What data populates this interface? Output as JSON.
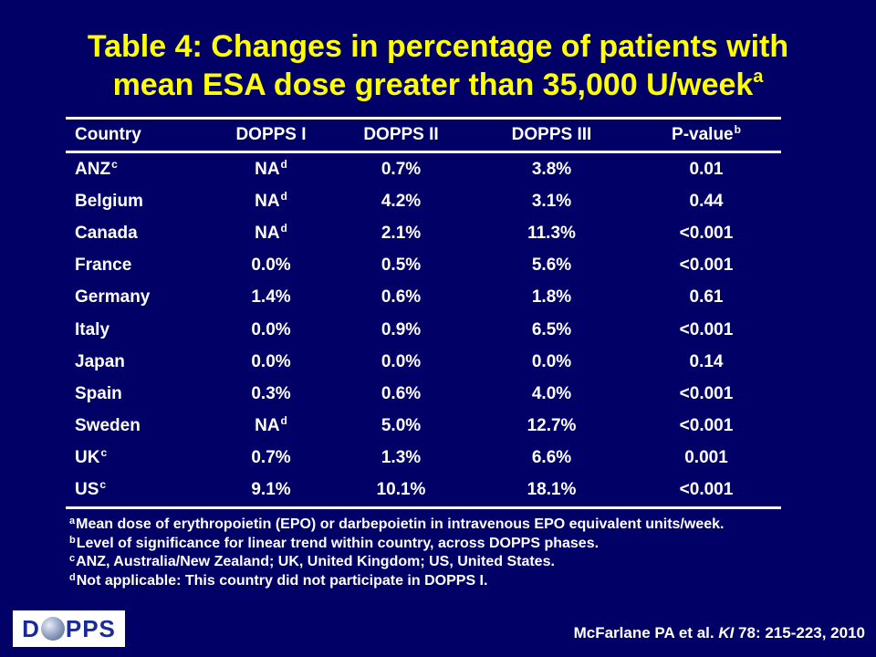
{
  "title": {
    "line1": "Table 4: Changes in percentage of patients with",
    "line2": "mean ESA dose greater than 35,000 U/week",
    "line2_note": "a"
  },
  "table": {
    "headers": [
      "Country",
      "DOPPS I",
      "DOPPS II",
      "DOPPS III",
      "P-value"
    ],
    "pvalue_note": "b",
    "rows": [
      {
        "country": "ANZ",
        "country_note": "c",
        "d1": "NA",
        "d1_note": "d",
        "d2": "0.7%",
        "d3": "3.8%",
        "p": "0.01"
      },
      {
        "country": "Belgium",
        "country_note": "",
        "d1": "NA",
        "d1_note": "d",
        "d2": "4.2%",
        "d3": "3.1%",
        "p": "0.44"
      },
      {
        "country": "Canada",
        "country_note": "",
        "d1": "NA",
        "d1_note": "d",
        "d2": "2.1%",
        "d3": "11.3%",
        "p": "<0.001"
      },
      {
        "country": "France",
        "country_note": "",
        "d1": "0.0%",
        "d1_note": "",
        "d2": "0.5%",
        "d3": "5.6%",
        "p": "<0.001"
      },
      {
        "country": "Germany",
        "country_note": "",
        "d1": "1.4%",
        "d1_note": "",
        "d2": "0.6%",
        "d3": "1.8%",
        "p": "0.61"
      },
      {
        "country": "Italy",
        "country_note": "",
        "d1": "0.0%",
        "d1_note": "",
        "d2": "0.9%",
        "d3": "6.5%",
        "p": "<0.001"
      },
      {
        "country": "Japan",
        "country_note": "",
        "d1": "0.0%",
        "d1_note": "",
        "d2": "0.0%",
        "d3": "0.0%",
        "p": "0.14"
      },
      {
        "country": "Spain",
        "country_note": "",
        "d1": "0.3%",
        "d1_note": "",
        "d2": "0.6%",
        "d3": "4.0%",
        "p": "<0.001"
      },
      {
        "country": "Sweden",
        "country_note": "",
        "d1": "NA",
        "d1_note": "d",
        "d2": "5.0%",
        "d3": "12.7%",
        "p": "<0.001"
      },
      {
        "country": "UK",
        "country_note": "c",
        "d1": "0.7%",
        "d1_note": "",
        "d2": "1.3%",
        "d3": "6.6%",
        "p": "0.001"
      },
      {
        "country": "US",
        "country_note": "c",
        "d1": "9.1%",
        "d1_note": "",
        "d2": "10.1%",
        "d3": "18.1%",
        "p": "<0.001"
      }
    ]
  },
  "footnotes": [
    {
      "mark": "a",
      "text": "Mean dose of erythropoietin (EPO) or darbepoietin in intravenous EPO equivalent units/week."
    },
    {
      "mark": "b",
      "text": "Level of significance for linear trend within country, across DOPPS phases."
    },
    {
      "mark": "c",
      "text": "ANZ, Australia/New Zealand; UK, United Kingdom; US, United States."
    },
    {
      "mark": "d",
      "text": "Not applicable: This country did not participate in DOPPS I."
    }
  ],
  "logo": {
    "left": "D",
    "right": "PPS"
  },
  "citation": {
    "before": "McFarlane PA et al. ",
    "journal": "KI",
    "after": " 78: 215-223, 2010"
  },
  "colors": {
    "background": "#000066",
    "title": "#ffff00",
    "text": "#ffffff",
    "logo_text": "#1a2a9a"
  }
}
